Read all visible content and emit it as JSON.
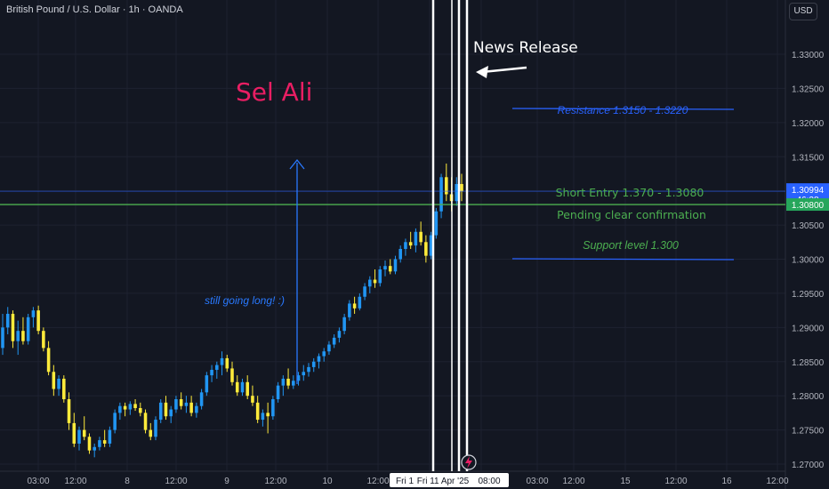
{
  "header": {
    "symbol_title": "British Pound / U.S. Dollar · 1h · OANDA",
    "currency_button": "USD"
  },
  "price_tags": {
    "last_price": "1.30994",
    "countdown": "46:28",
    "line_price": "1.30800",
    "last_color": "#2962ff",
    "line_color": "#26a65b"
  },
  "colors": {
    "background": "#131722",
    "grid": "#1e2230",
    "axis_text": "#b2b5be",
    "candle_up": "#2196f3",
    "candle_down": "#ffeb3b",
    "resistance_line": "#2962ff",
    "entry_line": "#4caf50",
    "vertical_lines": "#ffffff",
    "sel_ali_text": "#e91e63"
  },
  "annotations": {
    "sel_ali": "Sel Ali",
    "news_release": "News Release",
    "resistance": "Resistance 1.3150 - 1.3220",
    "short_entry": "Short Entry 1.370 - 1.3080",
    "pending": "Pending clear confirmation",
    "support": "Support level 1.300",
    "still_long": "still going long! :)"
  },
  "chart_data": {
    "type": "candlestick",
    "title": "British Pound / U.S. Dollar · 1h · OANDA",
    "y_unit": "USD",
    "ylim": [
      1.2695,
      1.3375
    ],
    "y_ticks": [
      1.27,
      1.275,
      1.28,
      1.285,
      1.29,
      1.295,
      1.3,
      1.305,
      1.31,
      1.315,
      1.32,
      1.325,
      1.33
    ],
    "x_ticks": [
      "03:00",
      "12:00",
      "8",
      "12:00",
      "9",
      "12:00",
      "10",
      "12:00",
      "Fri 1",
      "Fri 11 Apr '25",
      "08:00",
      "03:00",
      "12:00",
      "15",
      "12:00",
      "16",
      "12:00"
    ],
    "grid": true,
    "horizontal_levels": [
      {
        "label": "Resistance 1.3150 - 1.3220",
        "value": 1.322
      },
      {
        "label": "Short Entry 1.370 - 1.3080",
        "value": 1.308
      },
      {
        "label": "Support level 1.300",
        "value": 1.3
      }
    ],
    "last_price": 1.30994,
    "candles": [
      [
        1.287,
        1.292,
        1.286,
        1.29
      ],
      [
        1.29,
        1.293,
        1.289,
        1.292
      ],
      [
        1.292,
        1.2925,
        1.287,
        1.288
      ],
      [
        1.288,
        1.291,
        1.286,
        1.2895
      ],
      [
        1.2895,
        1.2915,
        1.2875,
        1.288
      ],
      [
        1.288,
        1.292,
        1.2875,
        1.2915
      ],
      [
        1.2915,
        1.293,
        1.29,
        1.2925
      ],
      [
        1.2925,
        1.2932,
        1.289,
        1.2895
      ],
      [
        1.2895,
        1.29,
        1.2865,
        1.287
      ],
      [
        1.287,
        1.288,
        1.283,
        1.2835
      ],
      [
        1.2835,
        1.2845,
        1.28,
        1.281
      ],
      [
        1.281,
        1.283,
        1.28,
        1.2825
      ],
      [
        1.2825,
        1.283,
        1.279,
        1.2795
      ],
      [
        1.2795,
        1.2805,
        1.275,
        1.276
      ],
      [
        1.276,
        1.2775,
        1.2725,
        1.273
      ],
      [
        1.273,
        1.2755,
        1.272,
        1.275
      ],
      [
        1.275,
        1.277,
        1.2735,
        1.274
      ],
      [
        1.274,
        1.2745,
        1.2715,
        1.272
      ],
      [
        1.272,
        1.273,
        1.271,
        1.2725
      ],
      [
        1.2725,
        1.274,
        1.272,
        1.2735
      ],
      [
        1.2735,
        1.275,
        1.2725,
        1.273
      ],
      [
        1.273,
        1.2755,
        1.2725,
        1.275
      ],
      [
        1.275,
        1.278,
        1.2745,
        1.2775
      ],
      [
        1.2775,
        1.279,
        1.2765,
        1.2785
      ],
      [
        1.2785,
        1.279,
        1.277,
        1.278
      ],
      [
        1.278,
        1.2792,
        1.2772,
        1.2788
      ],
      [
        1.2788,
        1.2795,
        1.2778,
        1.2782
      ],
      [
        1.2782,
        1.279,
        1.277,
        1.2775
      ],
      [
        1.2775,
        1.278,
        1.2745,
        1.275
      ],
      [
        1.275,
        1.276,
        1.2735,
        1.274
      ],
      [
        1.274,
        1.277,
        1.2735,
        1.2765
      ],
      [
        1.2765,
        1.2795,
        1.276,
        1.279
      ],
      [
        1.279,
        1.28,
        1.2765,
        1.277
      ],
      [
        1.277,
        1.2785,
        1.276,
        1.278
      ],
      [
        1.278,
        1.28,
        1.2775,
        1.2795
      ],
      [
        1.2795,
        1.2805,
        1.278,
        1.2785
      ],
      [
        1.2785,
        1.28,
        1.2775,
        1.279
      ],
      [
        1.279,
        1.28,
        1.277,
        1.2775
      ],
      [
        1.2775,
        1.279,
        1.2768,
        1.2785
      ],
      [
        1.2785,
        1.281,
        1.278,
        1.2805
      ],
      [
        1.2805,
        1.2835,
        1.28,
        1.283
      ],
      [
        1.283,
        1.2845,
        1.282,
        1.2838
      ],
      [
        1.2838,
        1.285,
        1.2825,
        1.2845
      ],
      [
        1.2845,
        1.2865,
        1.283,
        1.2855
      ],
      [
        1.2855,
        1.286,
        1.2835,
        1.284
      ],
      [
        1.284,
        1.285,
        1.2815,
        1.282
      ],
      [
        1.282,
        1.283,
        1.28,
        1.2805
      ],
      [
        1.2805,
        1.2825,
        1.28,
        1.282
      ],
      [
        1.282,
        1.283,
        1.2795,
        1.28
      ],
      [
        1.28,
        1.2815,
        1.2785,
        1.279
      ],
      [
        1.279,
        1.28,
        1.276,
        1.2765
      ],
      [
        1.2765,
        1.278,
        1.2755,
        1.2775
      ],
      [
        1.2775,
        1.279,
        1.2745,
        1.277
      ],
      [
        1.277,
        1.28,
        1.2765,
        1.2795
      ],
      [
        1.2795,
        1.282,
        1.279,
        1.2815
      ],
      [
        1.2815,
        1.283,
        1.28,
        1.2825
      ],
      [
        1.2825,
        1.284,
        1.281,
        1.2815
      ],
      [
        1.2815,
        1.283,
        1.281,
        1.2822
      ],
      [
        1.2822,
        1.2835,
        1.2815,
        1.283
      ],
      [
        1.283,
        1.2845,
        1.2822,
        1.2835
      ],
      [
        1.2835,
        1.2848,
        1.2828,
        1.2842
      ],
      [
        1.2842,
        1.2855,
        1.2835,
        1.285
      ],
      [
        1.285,
        1.2862,
        1.284,
        1.2858
      ],
      [
        1.2858,
        1.287,
        1.285,
        1.2865
      ],
      [
        1.2865,
        1.288,
        1.286,
        1.2875
      ],
      [
        1.2875,
        1.289,
        1.287,
        1.2885
      ],
      [
        1.2885,
        1.29,
        1.2878,
        1.2895
      ],
      [
        1.2895,
        1.292,
        1.289,
        1.2915
      ],
      [
        1.2915,
        1.294,
        1.291,
        1.2935
      ],
      [
        1.2935,
        1.2945,
        1.292,
        1.2928
      ],
      [
        1.2928,
        1.295,
        1.2925,
        1.2945
      ],
      [
        1.2945,
        1.2965,
        1.294,
        1.296
      ],
      [
        1.296,
        1.2975,
        1.295,
        1.297
      ],
      [
        1.297,
        1.2985,
        1.2958,
        1.2965
      ],
      [
        1.2965,
        1.299,
        1.296,
        1.2985
      ],
      [
        1.2985,
        1.2998,
        1.2975,
        1.299
      ],
      [
        1.299,
        1.3,
        1.2978,
        1.2982
      ],
      [
        1.2982,
        1.3005,
        1.2978,
        1.3
      ],
      [
        1.3,
        1.302,
        1.2995,
        1.3015
      ],
      [
        1.3015,
        1.303,
        1.3005,
        1.3025
      ],
      [
        1.3025,
        1.304,
        1.3015,
        1.302
      ],
      [
        1.302,
        1.3045,
        1.301,
        1.304
      ],
      [
        1.304,
        1.3055,
        1.302,
        1.3025
      ],
      [
        1.3025,
        1.3035,
        1.2995,
        1.3005
      ],
      [
        1.3005,
        1.304,
        1.3,
        1.3035
      ],
      [
        1.3035,
        1.3075,
        1.303,
        1.307
      ],
      [
        1.307,
        1.3125,
        1.306,
        1.312
      ],
      [
        1.312,
        1.314,
        1.3085,
        1.3095
      ],
      [
        1.3095,
        1.312,
        1.307,
        1.3085
      ],
      [
        1.3085,
        1.312,
        1.3078,
        1.311
      ],
      [
        1.311,
        1.3125,
        1.3085,
        1.3099
      ]
    ]
  }
}
